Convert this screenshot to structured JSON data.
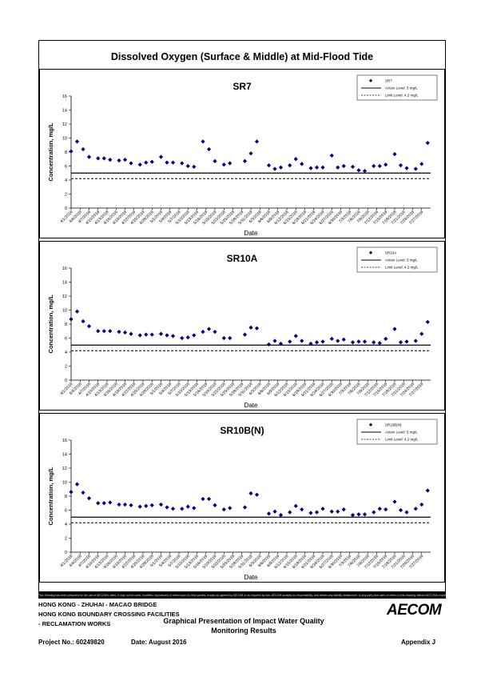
{
  "page": {
    "main_title": "Dissolved Oxygen (Surface & Middle) at Mid-Flood Tide",
    "disclaimer": "This Drawing has been prepared for the use of AECOM's client. It may not be used, modified, reproduced or relied upon by third parties, except as agreed by AECOM or as required by law. AECOM accepts no responsibility, and denies any liability whatsoever, to any party that uses or relies on this drawing without AECOM's express written consent.",
    "project_lines": [
      "HONG KONG - ZHUHAI - MACAO BRIDGE",
      "HONG KONG BOUNDARY CROSSING FACILITIES",
      "- RECLAMATION WORKS"
    ],
    "report_title_1": "Graphical Presentation of Impact Water Quality",
    "report_title_2": "Monitoring Results",
    "logo": "AECOM",
    "project_no": "Project No.: 60249820",
    "date": "Date: August 2016",
    "appendix": "Appendix J"
  },
  "chart_data": [
    {
      "type": "scatter",
      "title": "SR7",
      "xlabel": "Date",
      "ylabel": "Concentration, mg/L",
      "ylim": [
        0,
        16
      ],
      "yticks": [
        0,
        2,
        4,
        6,
        8,
        10,
        12,
        14,
        16
      ],
      "xticks": [
        "4/1/2016",
        "4/4/2016",
        "4/7/2016",
        "4/10/2016",
        "4/13/2016",
        "4/16/2016",
        "4/19/2016",
        "4/22/2016",
        "4/25/2016",
        "4/28/2016",
        "5/1/2016",
        "5/4/2016",
        "5/7/2016",
        "5/10/2016",
        "5/13/2016",
        "5/16/2016",
        "5/19/2016",
        "5/22/2016",
        "5/25/2016",
        "5/28/2016",
        "5/31/2016",
        "6/3/2016",
        "6/6/2016",
        "6/9/2016",
        "6/12/2016",
        "6/15/2016",
        "6/18/2016",
        "6/21/2016",
        "6/24/2016",
        "6/27/2016",
        "6/30/2016",
        "7/3/2016",
        "7/6/2016",
        "7/9/2016",
        "7/12/2016",
        "7/15/2016",
        "7/18/2016",
        "7/21/2016",
        "7/24/2016",
        "7/27/2016"
      ],
      "x_start": "4/1/2016",
      "x_end": "7/30/2016",
      "grid": false,
      "legend_position": "top-right",
      "legend": {
        "series": "SR7",
        "action": "Action Level: 5 mg/L",
        "limit": "Limit Level: 4.2 mg/L"
      },
      "action_level": 5,
      "limit_level": 4.2,
      "series": [
        {
          "name": "SR7",
          "color": "#000080",
          "points": [
            [
              "4/1/2016",
              8.1
            ],
            [
              "4/3/2016",
              9.5
            ],
            [
              "4/5/2016",
              8.4
            ],
            [
              "4/7/2016",
              7.3
            ],
            [
              "4/10/2016",
              7.1
            ],
            [
              "4/12/2016",
              7.1
            ],
            [
              "4/14/2016",
              6.9
            ],
            [
              "4/17/2016",
              6.8
            ],
            [
              "4/19/2016",
              6.9
            ],
            [
              "4/21/2016",
              6.4
            ],
            [
              "4/24/2016",
              6.2
            ],
            [
              "4/26/2016",
              6.5
            ],
            [
              "4/28/2016",
              6.6
            ],
            [
              "5/1/2016",
              7.3
            ],
            [
              "5/3/2016",
              6.5
            ],
            [
              "5/5/2016",
              6.5
            ],
            [
              "5/8/2016",
              6.4
            ],
            [
              "5/10/2016",
              6.0
            ],
            [
              "5/12/2016",
              5.9
            ],
            [
              "5/15/2016",
              9.5
            ],
            [
              "5/17/2016",
              8.4
            ],
            [
              "5/19/2016",
              6.7
            ],
            [
              "5/22/2016",
              6.2
            ],
            [
              "5/24/2016",
              6.4
            ],
            [
              "5/29/2016",
              6.7
            ],
            [
              "5/31/2016",
              7.8
            ],
            [
              "6/2/2016",
              9.5
            ],
            [
              "6/6/2016",
              6.1
            ],
            [
              "6/8/2016",
              5.6
            ],
            [
              "6/10/2016",
              5.8
            ],
            [
              "6/13/2016",
              6.1
            ],
            [
              "6/15/2016",
              7.0
            ],
            [
              "6/17/2016",
              6.3
            ],
            [
              "6/20/2016",
              5.7
            ],
            [
              "6/22/2016",
              5.8
            ],
            [
              "6/24/2016",
              5.8
            ],
            [
              "6/27/2016",
              7.5
            ],
            [
              "6/29/2016",
              5.8
            ],
            [
              "7/1/2016",
              6.0
            ],
            [
              "7/4/2016",
              5.9
            ],
            [
              "7/6/2016",
              5.4
            ],
            [
              "7/8/2016",
              5.3
            ],
            [
              "7/11/2016",
              6.0
            ],
            [
              "7/13/2016",
              6.0
            ],
            [
              "7/15/2016",
              6.2
            ],
            [
              "7/18/2016",
              7.7
            ],
            [
              "7/20/2016",
              6.1
            ],
            [
              "7/22/2016",
              5.7
            ],
            [
              "7/25/2016",
              5.6
            ],
            [
              "7/27/2016",
              6.3
            ],
            [
              "7/29/2016",
              9.3
            ]
          ]
        }
      ]
    },
    {
      "type": "scatter",
      "title": "SR10A",
      "xlabel": "Date",
      "ylabel": "Concentration, mg/L",
      "ylim": [
        0,
        16
      ],
      "yticks": [
        0,
        2,
        4,
        6,
        8,
        10,
        12,
        14,
        16
      ],
      "xticks": [
        "4/1/2016",
        "4/4/2016",
        "4/7/2016",
        "4/10/2016",
        "4/13/2016",
        "4/16/2016",
        "4/19/2016",
        "4/22/2016",
        "4/25/2016",
        "4/28/2016",
        "5/1/2016",
        "5/4/2016",
        "5/7/2016",
        "5/10/2016",
        "5/13/2016",
        "5/16/2016",
        "5/19/2016",
        "5/22/2016",
        "5/25/2016",
        "5/28/2016",
        "5/31/2016",
        "6/3/2016",
        "6/6/2016",
        "6/9/2016",
        "6/12/2016",
        "6/15/2016",
        "6/18/2016",
        "6/21/2016",
        "6/24/2016",
        "6/27/2016",
        "6/30/2016",
        "7/3/2016",
        "7/6/2016",
        "7/9/2016",
        "7/12/2016",
        "7/15/2016",
        "7/18/2016",
        "7/21/2016",
        "7/24/2016",
        "7/27/2016"
      ],
      "x_start": "4/1/2016",
      "x_end": "7/30/2016",
      "grid": false,
      "legend_position": "top-right",
      "legend": {
        "series": "SR10A",
        "action": "Action Level: 5 mg/L",
        "limit": "Limit Level: 4.2 mg/L"
      },
      "action_level": 5,
      "limit_level": 4.2,
      "series": [
        {
          "name": "SR10A",
          "color": "#000080",
          "points": [
            [
              "4/1/2016",
              8.7
            ],
            [
              "4/3/2016",
              9.8
            ],
            [
              "4/5/2016",
              8.4
            ],
            [
              "4/7/2016",
              7.7
            ],
            [
              "4/10/2016",
              7.0
            ],
            [
              "4/12/2016",
              7.0
            ],
            [
              "4/14/2016",
              7.0
            ],
            [
              "4/17/2016",
              6.9
            ],
            [
              "4/19/2016",
              6.8
            ],
            [
              "4/21/2016",
              6.6
            ],
            [
              "4/24/2016",
              6.4
            ],
            [
              "4/26/2016",
              6.5
            ],
            [
              "4/28/2016",
              6.5
            ],
            [
              "5/1/2016",
              6.6
            ],
            [
              "5/3/2016",
              6.4
            ],
            [
              "5/5/2016",
              6.3
            ],
            [
              "5/8/2016",
              6.0
            ],
            [
              "5/10/2016",
              6.1
            ],
            [
              "5/12/2016",
              6.4
            ],
            [
              "5/15/2016",
              6.9
            ],
            [
              "5/17/2016",
              7.3
            ],
            [
              "5/19/2016",
              6.9
            ],
            [
              "5/22/2016",
              6.0
            ],
            [
              "5/24/2016",
              6.0
            ],
            [
              "5/29/2016",
              6.5
            ],
            [
              "5/31/2016",
              7.5
            ],
            [
              "6/2/2016",
              7.4
            ],
            [
              "6/6/2016",
              5.1
            ],
            [
              "6/8/2016",
              5.6
            ],
            [
              "6/10/2016",
              5.2
            ],
            [
              "6/13/2016",
              5.5
            ],
            [
              "6/15/2016",
              6.3
            ],
            [
              "6/17/2016",
              5.6
            ],
            [
              "6/20/2016",
              5.2
            ],
            [
              "6/22/2016",
              5.4
            ],
            [
              "6/24/2016",
              5.5
            ],
            [
              "6/27/2016",
              5.9
            ],
            [
              "6/29/2016",
              5.6
            ],
            [
              "7/1/2016",
              5.8
            ],
            [
              "7/4/2016",
              5.4
            ],
            [
              "7/6/2016",
              5.5
            ],
            [
              "7/8/2016",
              5.5
            ],
            [
              "7/11/2016",
              5.4
            ],
            [
              "7/13/2016",
              5.3
            ],
            [
              "7/15/2016",
              5.9
            ],
            [
              "7/18/2016",
              7.3
            ],
            [
              "7/20/2016",
              5.4
            ],
            [
              "7/22/2016",
              5.5
            ],
            [
              "7/25/2016",
              5.6
            ],
            [
              "7/27/2016",
              6.6
            ],
            [
              "7/29/2016",
              8.3
            ]
          ]
        }
      ]
    },
    {
      "type": "scatter",
      "title": "SR10B(N)",
      "xlabel": "Date",
      "ylabel": "Concentration, mg/L",
      "ylim": [
        0,
        16
      ],
      "yticks": [
        0,
        2,
        4,
        6,
        8,
        10,
        12,
        14,
        16
      ],
      "xticks": [
        "4/1/2016",
        "4/4/2016",
        "4/7/2016",
        "4/10/2016",
        "4/13/2016",
        "4/16/2016",
        "4/19/2016",
        "4/22/2016",
        "4/25/2016",
        "4/28/2016",
        "5/1/2016",
        "5/4/2016",
        "5/7/2016",
        "5/10/2016",
        "5/13/2016",
        "5/16/2016",
        "5/19/2016",
        "5/22/2016",
        "5/25/2016",
        "5/28/2016",
        "5/31/2016",
        "6/3/2016",
        "6/6/2016",
        "6/9/2016",
        "6/12/2016",
        "6/15/2016",
        "6/18/2016",
        "6/21/2016",
        "6/24/2016",
        "6/27/2016",
        "6/30/2016",
        "7/3/2016",
        "7/6/2016",
        "7/9/2016",
        "7/12/2016",
        "7/15/2016",
        "7/18/2016",
        "7/21/2016",
        "7/24/2016",
        "7/27/2016"
      ],
      "x_start": "4/1/2016",
      "x_end": "7/30/2016",
      "grid": false,
      "legend_position": "top-right",
      "legend": {
        "series": "SR10B(N)",
        "action": "Action Level: 5 mg/L",
        "limit": "Limit Level: 4.2 mg/L"
      },
      "action_level": 5,
      "limit_level": 4.2,
      "series": [
        {
          "name": "SR10B(N)",
          "color": "#000080",
          "points": [
            [
              "4/1/2016",
              8.6
            ],
            [
              "4/3/2016",
              9.7
            ],
            [
              "4/5/2016",
              8.5
            ],
            [
              "4/7/2016",
              7.7
            ],
            [
              "4/10/2016",
              7.0
            ],
            [
              "4/12/2016",
              7.0
            ],
            [
              "4/14/2016",
              7.1
            ],
            [
              "4/17/2016",
              6.8
            ],
            [
              "4/19/2016",
              6.8
            ],
            [
              "4/21/2016",
              6.7
            ],
            [
              "4/24/2016",
              6.5
            ],
            [
              "4/26/2016",
              6.6
            ],
            [
              "4/28/2016",
              6.7
            ],
            [
              "5/1/2016",
              6.8
            ],
            [
              "5/3/2016",
              6.4
            ],
            [
              "5/5/2016",
              6.2
            ],
            [
              "5/8/2016",
              6.2
            ],
            [
              "5/10/2016",
              6.5
            ],
            [
              "5/12/2016",
              6.3
            ],
            [
              "5/15/2016",
              7.6
            ],
            [
              "5/17/2016",
              7.6
            ],
            [
              "5/19/2016",
              6.7
            ],
            [
              "5/22/2016",
              6.1
            ],
            [
              "5/24/2016",
              6.3
            ],
            [
              "5/29/2016",
              6.4
            ],
            [
              "5/31/2016",
              8.4
            ],
            [
              "6/2/2016",
              8.2
            ],
            [
              "6/6/2016",
              5.5
            ],
            [
              "6/8/2016",
              5.8
            ],
            [
              "6/10/2016",
              5.3
            ],
            [
              "6/13/2016",
              5.7
            ],
            [
              "6/15/2016",
              6.6
            ],
            [
              "6/17/2016",
              6.1
            ],
            [
              "6/20/2016",
              5.6
            ],
            [
              "6/22/2016",
              5.7
            ],
            [
              "6/24/2016",
              6.2
            ],
            [
              "6/27/2016",
              5.8
            ],
            [
              "6/29/2016",
              5.8
            ],
            [
              "7/1/2016",
              6.1
            ],
            [
              "7/4/2016",
              5.3
            ],
            [
              "7/6/2016",
              5.4
            ],
            [
              "7/8/2016",
              5.4
            ],
            [
              "7/11/2016",
              5.7
            ],
            [
              "7/13/2016",
              6.2
            ],
            [
              "7/15/2016",
              6.1
            ],
            [
              "7/18/2016",
              7.2
            ],
            [
              "7/20/2016",
              6.0
            ],
            [
              "7/22/2016",
              5.7
            ],
            [
              "7/25/2016",
              6.2
            ],
            [
              "7/27/2016",
              6.8
            ],
            [
              "7/29/2016",
              8.8
            ]
          ]
        }
      ]
    }
  ]
}
